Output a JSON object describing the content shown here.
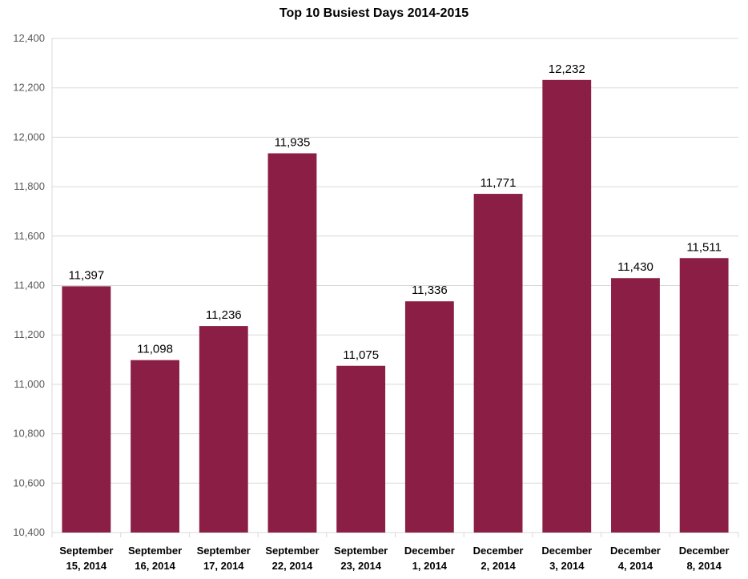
{
  "chart_data": {
    "type": "bar",
    "title": "Top 10 Busiest Days 2014-2015",
    "xlabel": "",
    "ylabel": "",
    "ylim": [
      10400,
      12400
    ],
    "ytick_step": 200,
    "ytick_labels": [
      "10,400",
      "10,600",
      "10,800",
      "11,000",
      "11,200",
      "11,400",
      "11,600",
      "11,800",
      "12,000",
      "12,200",
      "12,400"
    ],
    "grid": true,
    "legend": "none",
    "bar_color": "#8B1E45",
    "categories": [
      [
        "September",
        "15, 2014"
      ],
      [
        "September",
        "16, 2014"
      ],
      [
        "September",
        "17, 2014"
      ],
      [
        "September",
        "22, 2014"
      ],
      [
        "September",
        "23, 2014"
      ],
      [
        "December",
        "1, 2014"
      ],
      [
        "December",
        "2, 2014"
      ],
      [
        "December",
        "3, 2014"
      ],
      [
        "December",
        "4, 2014"
      ],
      [
        "December",
        "8, 2014"
      ]
    ],
    "values": [
      11397,
      11098,
      11236,
      11935,
      11075,
      11336,
      11771,
      12232,
      11430,
      11511
    ],
    "value_labels": [
      "11,397",
      "11,098",
      "11,236",
      "11,935",
      "11,075",
      "11,336",
      "11,771",
      "12,232",
      "11,430",
      "11,511"
    ]
  }
}
